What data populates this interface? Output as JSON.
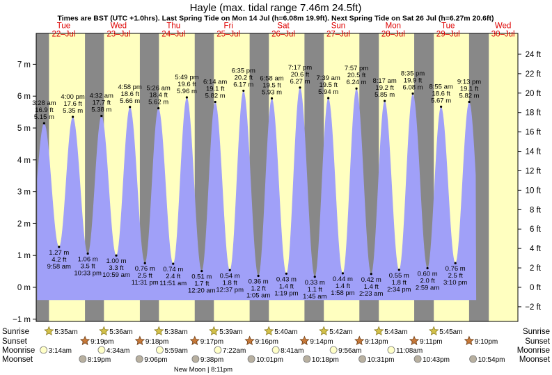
{
  "chart_data": {
    "type": "area",
    "title": "Hayle (max. tidal range 7.46m 24.5ft)",
    "subtitle": "Times are BST (UTC +1.0hrs). Last Spring Tide on Mon 14 Jul (h=6.08m 19.9ft). Next Spring Tide on Sat 26 Jul (h=6.27m 20.6ft)",
    "days": [
      {
        "dow": "Tue",
        "date": "22–Jul"
      },
      {
        "dow": "Wed",
        "date": "23–Jul"
      },
      {
        "dow": "Thu",
        "date": "24–Jul"
      },
      {
        "dow": "Fri",
        "date": "25–Jul"
      },
      {
        "dow": "Sat",
        "date": "26–Jul"
      },
      {
        "dow": "Sun",
        "date": "27–Jul"
      },
      {
        "dow": "Mon",
        "date": "28–Jul"
      },
      {
        "dow": "Tue",
        "date": "29–Jul"
      },
      {
        "dow": "Wed",
        "date": "30–Jul"
      }
    ],
    "y_left": {
      "unit": "m",
      "ylim": [
        -1.2,
        7.6
      ],
      "ticks": [
        -1,
        0,
        1,
        2,
        3,
        4,
        5,
        6,
        7
      ]
    },
    "y_right": {
      "unit": "ft",
      "ticks": [
        -2,
        0,
        2,
        4,
        6,
        8,
        10,
        12,
        14,
        16,
        18,
        20,
        22,
        24
      ]
    },
    "tides": [
      {
        "type": "high",
        "day": 0,
        "hour": 3.47,
        "time": "3:28 am",
        "ft": "16.9 ft",
        "m": 5.15,
        "m_label": "5.15 m"
      },
      {
        "type": "low",
        "day": 0,
        "hour": 9.97,
        "time": "9:58 am",
        "ft": "4.2 ft",
        "m": 1.27,
        "m_label": "1.27 m"
      },
      {
        "type": "high",
        "day": 0,
        "hour": 16.0,
        "time": "4:00 pm",
        "ft": "17.6 ft",
        "m": 5.35,
        "m_label": "5.35 m"
      },
      {
        "type": "low",
        "day": 0,
        "hour": 22.55,
        "time": "10:33 pm",
        "ft": "3.5 ft",
        "m": 1.06,
        "m_label": "1.06 m"
      },
      {
        "type": "high",
        "day": 1,
        "hour": 4.53,
        "time": "4:32 am",
        "ft": "17.7 ft",
        "m": 5.38,
        "m_label": "5.38 m"
      },
      {
        "type": "low",
        "day": 1,
        "hour": 10.98,
        "time": "10:59 am",
        "ft": "3.3 ft",
        "m": 1.0,
        "m_label": "1.00 m"
      },
      {
        "type": "high",
        "day": 1,
        "hour": 16.97,
        "time": "4:58 pm",
        "ft": "18.6 ft",
        "m": 5.66,
        "m_label": "5.66 m"
      },
      {
        "type": "low",
        "day": 1,
        "hour": 23.52,
        "time": "11:31 pm",
        "ft": "2.5 ft",
        "m": 0.76,
        "m_label": "0.76 m"
      },
      {
        "type": "high",
        "day": 2,
        "hour": 5.43,
        "time": "5:26 am",
        "ft": "18.4 ft",
        "m": 5.62,
        "m_label": "5.62 m"
      },
      {
        "type": "low",
        "day": 2,
        "hour": 11.85,
        "time": "11:51 am",
        "ft": "2.4 ft",
        "m": 0.74,
        "m_label": "0.74 m"
      },
      {
        "type": "high",
        "day": 2,
        "hour": 17.82,
        "time": "5:49 pm",
        "ft": "19.6 ft",
        "m": 5.96,
        "m_label": "5.96 m"
      },
      {
        "type": "low",
        "day": 3,
        "hour": 0.33,
        "time": "12:20 am",
        "ft": "1.7 ft",
        "m": 0.51,
        "m_label": "0.51 m"
      },
      {
        "type": "high",
        "day": 3,
        "hour": 6.23,
        "time": "6:14 am",
        "ft": "19.1 ft",
        "m": 5.82,
        "m_label": "5.82 m"
      },
      {
        "type": "low",
        "day": 3,
        "hour": 12.62,
        "time": "12:37 pm",
        "ft": "1.8 ft",
        "m": 0.54,
        "m_label": "0.54 m"
      },
      {
        "type": "high",
        "day": 3,
        "hour": 18.58,
        "time": "6:35 pm",
        "ft": "20.2 ft",
        "m": 6.17,
        "m_label": "6.17 m"
      },
      {
        "type": "low",
        "day": 4,
        "hour": 1.08,
        "time": "1:05 am",
        "ft": "1.2 ft",
        "m": 0.36,
        "m_label": "0.36 m"
      },
      {
        "type": "high",
        "day": 4,
        "hour": 6.97,
        "time": "6:58 am",
        "ft": "19.5 ft",
        "m": 5.93,
        "m_label": "5.93 m"
      },
      {
        "type": "low",
        "day": 4,
        "hour": 13.32,
        "time": "1:19 pm",
        "ft": "1.4 ft",
        "m": 0.43,
        "m_label": "0.43 m"
      },
      {
        "type": "high",
        "day": 4,
        "hour": 19.28,
        "time": "7:17 pm",
        "ft": "20.6 ft",
        "m": 6.27,
        "m_label": "6.27 m"
      },
      {
        "type": "low",
        "day": 5,
        "hour": 1.75,
        "time": "1:45 am",
        "ft": "1.1 ft",
        "m": 0.33,
        "m_label": "0.33 m"
      },
      {
        "type": "high",
        "day": 5,
        "hour": 7.65,
        "time": "7:39 am",
        "ft": "19.5 ft",
        "m": 5.94,
        "m_label": "5.94 m"
      },
      {
        "type": "low",
        "day": 5,
        "hour": 13.97,
        "time": "1:58 pm",
        "ft": "1.4 ft",
        "m": 0.44,
        "m_label": "0.44 m"
      },
      {
        "type": "high",
        "day": 5,
        "hour": 19.95,
        "time": "7:57 pm",
        "ft": "20.5 ft",
        "m": 6.24,
        "m_label": "6.24 m"
      },
      {
        "type": "low",
        "day": 6,
        "hour": 2.38,
        "time": "2:23 am",
        "ft": "1.4 ft",
        "m": 0.42,
        "m_label": "0.42 m"
      },
      {
        "type": "high",
        "day": 6,
        "hour": 8.28,
        "time": "8:17 am",
        "ft": "19.2 ft",
        "m": 5.85,
        "m_label": "5.85 m"
      },
      {
        "type": "low",
        "day": 6,
        "hour": 14.57,
        "time": "2:34 pm",
        "ft": "1.8 ft",
        "m": 0.55,
        "m_label": "0.55 m"
      },
      {
        "type": "high",
        "day": 6,
        "hour": 20.58,
        "time": "8:35 pm",
        "ft": "19.9 ft",
        "m": 6.08,
        "m_label": "6.08 m"
      },
      {
        "type": "low",
        "day": 7,
        "hour": 2.98,
        "time": "2:59 am",
        "ft": "2.0 ft",
        "m": 0.6,
        "m_label": "0.60 m"
      },
      {
        "type": "high",
        "day": 7,
        "hour": 8.92,
        "time": "8:55 am",
        "ft": "18.6 ft",
        "m": 5.67,
        "m_label": "5.67 m"
      },
      {
        "type": "low",
        "day": 7,
        "hour": 15.17,
        "time": "3:10 pm",
        "ft": "2.5 ft",
        "m": 0.76,
        "m_label": "0.76 m"
      },
      {
        "type": "high",
        "day": 7,
        "hour": 21.22,
        "time": "9:13 pm",
        "ft": "19.1 ft",
        "m": 5.82,
        "m_label": "5.82 m"
      }
    ],
    "sun": [
      {
        "rise_hour": 5.58,
        "set_hour": 21.32,
        "rise": "5:35am",
        "set": "9:19pm"
      },
      {
        "rise_hour": 5.6,
        "set_hour": 21.3,
        "rise": "5:36am",
        "set": "9:18pm"
      },
      {
        "rise_hour": 5.63,
        "set_hour": 21.28,
        "rise": "5:38am",
        "set": "9:17pm"
      },
      {
        "rise_hour": 5.65,
        "set_hour": 21.27,
        "rise": "5:39am",
        "set": "9:16pm"
      },
      {
        "rise_hour": 5.67,
        "set_hour": 21.23,
        "rise": "5:40am",
        "set": "9:14pm"
      },
      {
        "rise_hour": 5.7,
        "set_hour": 21.22,
        "rise": "5:42am",
        "set": "9:13pm"
      },
      {
        "rise_hour": 5.72,
        "set_hour": 21.18,
        "rise": "5:43am",
        "set": "9:11pm"
      },
      {
        "rise_hour": 5.75,
        "set_hour": 21.17,
        "rise": "5:45am",
        "set": "9:10pm"
      },
      {
        "rise_hour": null,
        "set_hour": null,
        "rise": "",
        "set": ""
      }
    ],
    "moonrise": [
      {
        "day": 0,
        "hour": 3.23,
        "time": "3:14am"
      },
      {
        "day": 1,
        "hour": 4.57,
        "time": "4:34am"
      },
      {
        "day": 2,
        "hour": 5.98,
        "time": "5:59am"
      },
      {
        "day": 3,
        "hour": 7.37,
        "time": "7:22am"
      },
      {
        "day": 4,
        "hour": 8.68,
        "time": "8:41am"
      },
      {
        "day": 5,
        "hour": 9.93,
        "time": "9:56am"
      },
      {
        "day": 6,
        "hour": 11.13,
        "time": "11:08am"
      }
    ],
    "moonset": [
      {
        "day": 0,
        "hour": 20.32,
        "time": "8:19pm"
      },
      {
        "day": 1,
        "hour": 21.1,
        "time": "9:06pm"
      },
      {
        "day": 2,
        "hour": 21.63,
        "time": "9:38pm"
      },
      {
        "day": 3,
        "hour": 22.02,
        "time": "10:01pm"
      },
      {
        "day": 4,
        "hour": 22.3,
        "time": "10:18pm"
      },
      {
        "day": 5,
        "hour": 22.52,
        "time": "10:31pm"
      },
      {
        "day": 6,
        "hour": 22.72,
        "time": "10:43pm"
      },
      {
        "day": 7,
        "hour": 22.9,
        "time": "10:54pm"
      }
    ],
    "row_labels": {
      "sunrise": "Sunrise",
      "sunset": "Sunset",
      "moonrise": "Moonrise",
      "moonset": "Moonset"
    },
    "new_moon": "New Moon | 8:11pm",
    "colors": {
      "day": "#ffffc0",
      "night": "#888888",
      "water": "#a0a0f8",
      "day_label": "#dd0000",
      "sun_fill": "#d4c24a",
      "sun_stroke": "#8a7a1e",
      "sunset_fill": "#c87a3a",
      "sunset_stroke": "#6a3a12",
      "moonrise_fill": "#ffffc8",
      "moonset_fill": "#b8b0a0"
    }
  }
}
